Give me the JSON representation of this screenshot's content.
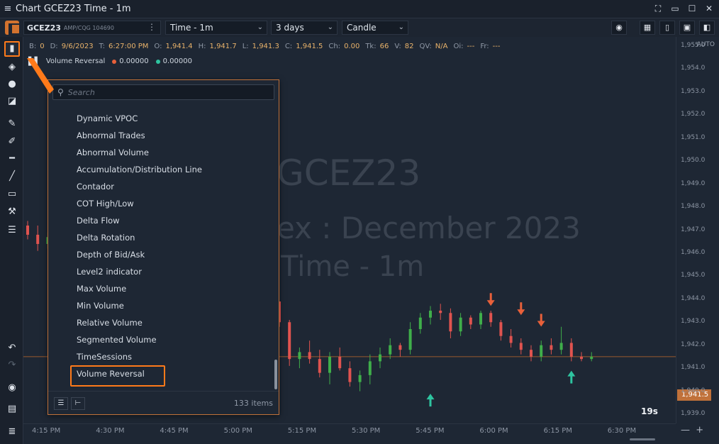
{
  "window": {
    "title": "Chart GCEZ23 Time - 1m"
  },
  "toolbar": {
    "symbol": "GCEZ23",
    "symbol_sub": "AMP/CQG 104690",
    "timeframe": "Time - 1m",
    "range": "3 days",
    "chart_type": "Candle"
  },
  "info": [
    {
      "k": "B:",
      "v": "0"
    },
    {
      "k": "D:",
      "v": "9/6/2023"
    },
    {
      "k": "T:",
      "v": "6:27:00 PM"
    },
    {
      "k": "O:",
      "v": "1,941.4"
    },
    {
      "k": "H:",
      "v": "1,941.7"
    },
    {
      "k": "L:",
      "v": "1,941.3"
    },
    {
      "k": "C:",
      "v": "1,941.5"
    },
    {
      "k": "Ch:",
      "v": "0.00"
    },
    {
      "k": "Tk:",
      "v": "66"
    },
    {
      "k": "V:",
      "v": "82"
    },
    {
      "k": "QV:",
      "v": "N/A"
    },
    {
      "k": "Oi:",
      "v": "---"
    },
    {
      "k": "Fr:",
      "v": "---"
    }
  ],
  "indicator_legend": {
    "name": "Volume Reversal",
    "val1": "0.00000",
    "val2": "0.00000",
    "color1": "#e8603a",
    "color2": "#2ec4a0"
  },
  "watermark": {
    "line1": "GCEZ23",
    "line2": "ex : December 2023",
    "line3": "Time - 1m"
  },
  "price_scale": {
    "auto_label": "AUTO",
    "ticks": [
      "1,955.0",
      "1,954.0",
      "1,953.0",
      "1,952.0",
      "1,951.0",
      "1,950.0",
      "1,949.0",
      "1,948.0",
      "1,947.0",
      "1,946.0",
      "1,945.0",
      "1,944.0",
      "1,943.0",
      "1,942.0",
      "1,941.0",
      "1,940.0",
      "1,939.0"
    ],
    "current": "1,941.5"
  },
  "time_scale": {
    "ticks": [
      "4:15 PM",
      "4:30 PM",
      "4:45 PM",
      "5:00 PM",
      "5:15 PM",
      "5:30 PM",
      "5:45 PM",
      "6:00 PM",
      "6:15 PM",
      "6:30 PM"
    ]
  },
  "countdown": "19s",
  "indicator_popup": {
    "search_placeholder": "Search",
    "items": [
      "Dynamic VPOC",
      "Abnormal Trades",
      "Abnormal Volume",
      "Accumulation/Distribution Line",
      "Contador",
      "COT High/Low",
      "Delta Flow",
      "Delta Rotation",
      "Depth of Bid/Ask",
      "Level2 indicator",
      "Max Volume",
      "Min Volume",
      "Relative Volume",
      "Segmented Volume",
      "TimeSessions",
      "Volume Reversal"
    ],
    "selected": "Volume Reversal",
    "count_label": "133 items"
  },
  "colors": {
    "up": "#3fae4a",
    "down": "#e0534f",
    "accent": "#ff7a1a",
    "bull_arrow": "#2ec4a0",
    "bear_arrow": "#e8603a"
  },
  "chart_data": {
    "type": "candlestick",
    "y_range": [
      1938.6,
      1955.4
    ],
    "candles": [
      [
        1947.2,
        1947.4,
        1946.6,
        1946.8
      ],
      [
        1946.8,
        1947.2,
        1946.1,
        1946.4
      ],
      [
        1946.4,
        1946.9,
        1946.2,
        1946.7
      ],
      [
        1948.5,
        1948.7,
        1947.8,
        1948.0
      ],
      [
        1948.0,
        1948.3,
        1946.9,
        1947.2
      ],
      [
        1947.2,
        1947.6,
        1946.2,
        1946.5
      ],
      [
        1946.5,
        1947.4,
        1946.2,
        1947.2
      ],
      [
        1947.2,
        1948.6,
        1947.0,
        1948.3
      ],
      [
        1948.3,
        1948.9,
        1947.9,
        1948.6
      ],
      [
        1948.6,
        1949.1,
        1948.1,
        1948.4
      ],
      [
        1948.4,
        1948.6,
        1947.6,
        1947.9
      ],
      [
        1947.9,
        1948.4,
        1947.4,
        1948.1
      ],
      [
        1948.1,
        1948.5,
        1947.2,
        1947.5
      ],
      [
        1947.5,
        1948.2,
        1947.2,
        1947.9
      ],
      [
        1947.9,
        1948.0,
        1946.8,
        1947.1
      ],
      [
        1947.1,
        1947.6,
        1946.9,
        1947.3
      ],
      [
        1947.3,
        1947.5,
        1946.1,
        1946.3
      ],
      [
        1946.3,
        1946.6,
        1945.5,
        1945.7
      ],
      [
        1945.7,
        1945.9,
        1944.6,
        1944.8
      ],
      [
        1944.8,
        1945.6,
        1944.4,
        1945.3
      ],
      [
        1945.3,
        1945.4,
        1944.2,
        1944.4
      ],
      [
        1944.4,
        1944.7,
        1943.6,
        1943.8
      ],
      [
        1943.8,
        1944.9,
        1943.6,
        1944.6
      ],
      [
        1944.6,
        1945.2,
        1944.0,
        1944.2
      ],
      [
        1944.2,
        1944.4,
        1943.6,
        1943.9
      ],
      [
        1943.9,
        1943.9,
        1942.8,
        1943.0
      ],
      [
        1943.0,
        1943.1,
        1941.1,
        1941.4
      ],
      [
        1941.4,
        1941.9,
        1941.0,
        1941.7
      ],
      [
        1941.7,
        1942.2,
        1941.2,
        1941.4
      ],
      [
        1941.4,
        1941.8,
        1940.6,
        1940.8
      ],
      [
        1940.8,
        1941.7,
        1940.3,
        1941.5
      ],
      [
        1941.5,
        1941.9,
        1940.9,
        1941.0
      ],
      [
        1941.0,
        1941.3,
        1940.2,
        1940.4
      ],
      [
        1940.4,
        1940.9,
        1940.0,
        1940.7
      ],
      [
        1940.7,
        1941.6,
        1940.3,
        1941.3
      ],
      [
        1941.3,
        1941.9,
        1941.0,
        1941.6
      ],
      [
        1941.6,
        1942.3,
        1941.4,
        1942.0
      ],
      [
        1942.0,
        1942.1,
        1941.5,
        1941.8
      ],
      [
        1941.8,
        1943.0,
        1941.6,
        1942.7
      ],
      [
        1942.7,
        1943.4,
        1942.5,
        1943.2
      ],
      [
        1943.2,
        1943.7,
        1942.9,
        1943.5
      ],
      [
        1943.5,
        1943.8,
        1943.1,
        1943.4
      ],
      [
        1943.4,
        1943.6,
        1942.3,
        1942.6
      ],
      [
        1942.6,
        1943.4,
        1942.4,
        1943.2
      ],
      [
        1943.2,
        1943.3,
        1942.7,
        1942.9
      ],
      [
        1942.9,
        1943.5,
        1942.7,
        1943.4
      ],
      [
        1943.4,
        1943.5,
        1942.8,
        1943.0
      ],
      [
        1943.0,
        1943.1,
        1942.2,
        1942.4
      ],
      [
        1942.4,
        1942.7,
        1941.9,
        1942.1
      ],
      [
        1942.1,
        1942.3,
        1941.6,
        1941.8
      ],
      [
        1941.8,
        1942.0,
        1941.3,
        1941.5
      ],
      [
        1941.5,
        1942.2,
        1941.3,
        1942.0
      ],
      [
        1942.0,
        1942.3,
        1941.6,
        1941.8
      ],
      [
        1941.8,
        1942.8,
        1941.6,
        1942.1
      ],
      [
        1942.1,
        1942.3,
        1941.3,
        1941.5
      ],
      [
        1941.5,
        1941.7,
        1941.3,
        1941.4
      ],
      [
        1941.4,
        1941.7,
        1941.3,
        1941.5
      ]
    ]
  }
}
